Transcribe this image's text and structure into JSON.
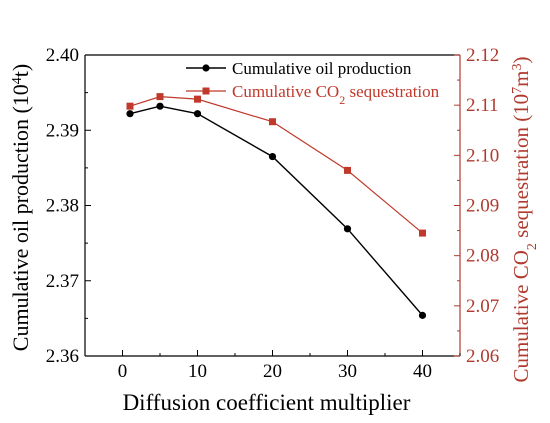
{
  "chart_data": {
    "type": "line",
    "x": [
      1,
      5,
      10,
      20,
      30,
      40
    ],
    "xlabel": "Diffusion coefficient multiplier",
    "xlim": [
      -5,
      45
    ],
    "x_ticks": [
      0,
      10,
      20,
      30,
      40
    ],
    "ylabel_left": {
      "text": "Cumulative oil production (10",
      "sup": "4",
      "end": "t)"
    },
    "ylim_left": [
      2.36,
      2.4
    ],
    "y_ticks_left": [
      2.36,
      2.37,
      2.38,
      2.39,
      2.4
    ],
    "ylabel_right": {
      "text": "Cumulative CO",
      "sub": "2",
      "mid": " sequestration (10",
      "sup": "7",
      "end": "m",
      "sup2": "3",
      "close": ")"
    },
    "ylim_right": [
      2.06,
      2.12
    ],
    "y_ticks_right": [
      2.06,
      2.07,
      2.08,
      2.09,
      2.1,
      2.11,
      2.12
    ],
    "series": [
      {
        "name": "Cumulative oil production",
        "axis": "left",
        "color": "#000000",
        "marker": "circle",
        "values": [
          2.3922,
          2.3932,
          2.3922,
          2.3865,
          2.3769,
          2.3654
        ]
      },
      {
        "name": "Cumulative CO2 sequestration",
        "name_parts": {
          "text": "Cumulative CO",
          "sub": "2",
          "end": " sequestration"
        },
        "axis": "right",
        "color": "#c0392b",
        "marker": "square",
        "values": [
          2.1098,
          2.1117,
          2.1112,
          2.1067,
          2.097,
          2.0845
        ]
      }
    ],
    "legend": "top-right",
    "grid": false
  }
}
